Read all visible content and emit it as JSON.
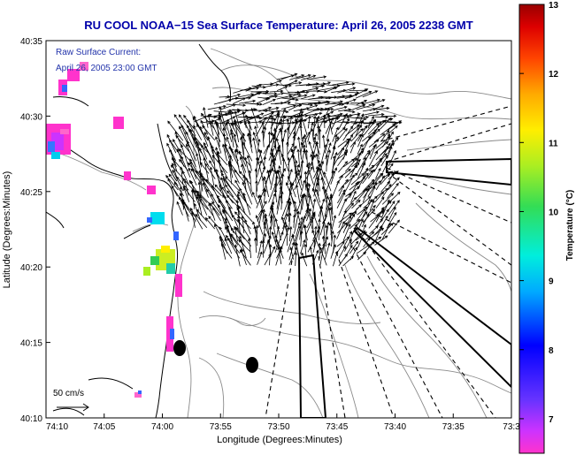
{
  "title": "RU COOL  NOAA−15  Sea Surface Temperature:  April 26, 2005 2238 GMT",
  "current_label": {
    "line1": "Raw Surface Current:",
    "line2": "April 26, 2005 23:00 GMT"
  },
  "axes": {
    "xlabel": "Longitude (Degrees:Minutes)",
    "ylabel": "Latitude (Degrees:Minutes)",
    "x_ticks": [
      "74:10",
      "74:05",
      "74:00",
      "73:55",
      "73:50",
      "73:45",
      "73:40",
      "73:35",
      "73:3"
    ],
    "y_ticks": [
      "40:35",
      "40:30",
      "40:25",
      "40:20",
      "40:15",
      "40:10"
    ]
  },
  "scale_label": "50 cm/s",
  "colorbar": {
    "label": "Temperature (°C)",
    "ticks": [
      "13",
      "12",
      "11",
      "10",
      "9",
      "8",
      "7"
    ],
    "min": 6.5,
    "max": 13
  },
  "colors": {
    "title": "#0000aa",
    "current_text": "#2233aa",
    "land_contour": "#000000",
    "bathymetry": "#888888"
  }
}
